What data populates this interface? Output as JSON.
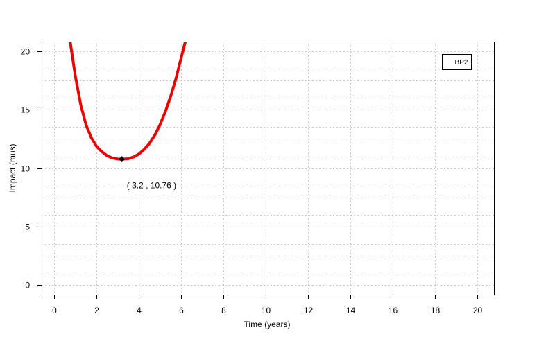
{
  "chart_data": {
    "type": "line",
    "title": "",
    "xlabel": "Time (years)",
    "ylabel": "Impact (mus)",
    "xlim": [
      -0.6,
      20.8
    ],
    "ylim": [
      -0.8,
      20.8
    ],
    "x_ticks": [
      0,
      2,
      4,
      6,
      8,
      10,
      12,
      14,
      16,
      18,
      20
    ],
    "x_tick_labels": [
      "0",
      "2",
      "4",
      "6",
      "8",
      "10",
      "12",
      "14",
      "16",
      "18",
      "20"
    ],
    "y_ticks": [
      0,
      5,
      10,
      15,
      20
    ],
    "y_tick_labels": [
      "0",
      "5",
      "10",
      "15",
      "20"
    ],
    "x_grid": [
      0,
      2,
      4,
      6,
      8,
      10,
      12,
      14,
      16,
      18,
      20
    ],
    "y_grid": [
      0,
      1,
      2.5,
      3.5,
      5,
      6,
      7.5,
      8.5,
      10,
      11,
      12.5,
      13.5,
      15,
      16,
      17.5,
      18.5,
      20
    ],
    "grid": true,
    "legend": {
      "position": "top-right",
      "entries": [
        "BP2"
      ]
    },
    "series": [
      {
        "name": "BP2",
        "color": "#ee0000",
        "x": [
          0.75,
          1.0,
          1.25,
          1.5,
          1.75,
          2.0,
          2.25,
          2.5,
          2.75,
          3.0,
          3.2,
          3.5,
          3.75,
          4.0,
          4.25,
          4.5,
          4.75,
          5.0,
          5.25,
          5.5,
          5.75,
          6.0,
          6.2
        ],
        "y": [
          20.8,
          17.8,
          15.4,
          13.7,
          12.6,
          11.85,
          11.4,
          11.05,
          10.86,
          10.78,
          10.76,
          10.8,
          10.95,
          11.2,
          11.6,
          12.1,
          12.8,
          13.7,
          14.8,
          16.1,
          17.6,
          19.4,
          20.8
        ]
      }
    ],
    "marker": {
      "x": 3.2,
      "y": 10.76,
      "label": "( 3.2 , 10.76 )"
    }
  }
}
